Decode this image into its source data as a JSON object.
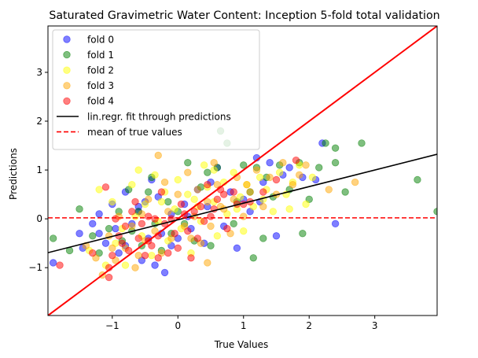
{
  "chart_data": {
    "type": "scatter",
    "title": "Saturated Gravimetric Water Content: Inception 5-fold total validation",
    "xlabel": "True Values",
    "ylabel": "Predictions",
    "xlim": [
      -1.98,
      3.95
    ],
    "ylim": [
      -1.98,
      3.95
    ],
    "xticks": [
      -1,
      0,
      1,
      2,
      3
    ],
    "yticks": [
      -1,
      0,
      1,
      2,
      3
    ],
    "grid": false,
    "legend_position": "top-left",
    "legend": [
      "fold 0",
      "fold 1",
      "fold 2",
      "fold 3",
      "fold 4",
      "lin.regr. fit through predictions",
      "mean of true values"
    ],
    "series": [
      {
        "name": "fold 0",
        "color": "#0000ff",
        "points": [
          [
            -1.9,
            -0.9
          ],
          [
            -1.5,
            -0.3
          ],
          [
            -1.45,
            -0.6
          ],
          [
            -1.3,
            -0.1
          ],
          [
            -1.2,
            0.1
          ],
          [
            -1.1,
            -0.5
          ],
          [
            -1.0,
            0.3
          ],
          [
            -0.95,
            -0.2
          ],
          [
            -0.9,
            -0.7
          ],
          [
            -0.8,
            0.55
          ],
          [
            -0.7,
            -0.1
          ],
          [
            -0.6,
            0.15
          ],
          [
            -0.55,
            -0.85
          ],
          [
            -0.5,
            0.35
          ],
          [
            -0.45,
            -0.4
          ],
          [
            -0.4,
            0.8
          ],
          [
            -0.35,
            -0.95
          ],
          [
            -0.3,
            0.45
          ],
          [
            -0.25,
            -0.3
          ],
          [
            -0.2,
            -1.1
          ],
          [
            -0.1,
            0.1
          ],
          [
            0.0,
            -0.4
          ],
          [
            0.1,
            0.3
          ],
          [
            0.2,
            -0.2
          ],
          [
            0.3,
            0.6
          ],
          [
            0.4,
            -0.5
          ],
          [
            0.5,
            0.75
          ],
          [
            0.6,
            1.05
          ],
          [
            0.7,
            -0.15
          ],
          [
            0.8,
            0.55
          ],
          [
            0.9,
            -0.6
          ],
          [
            1.0,
            0.4
          ],
          [
            1.1,
            0.15
          ],
          [
            1.2,
            1.25
          ],
          [
            1.3,
            0.75
          ],
          [
            1.4,
            1.15
          ],
          [
            1.5,
            -0.35
          ],
          [
            1.6,
            0.9
          ],
          [
            1.7,
            1.05
          ],
          [
            1.9,
            0.85
          ],
          [
            2.1,
            0.8
          ],
          [
            2.2,
            1.55
          ],
          [
            2.4,
            -0.1
          ],
          [
            -1.2,
            -0.3
          ],
          [
            -0.8,
            -0.55
          ],
          [
            -0.6,
            0.25
          ],
          [
            -0.1,
            -0.55
          ],
          [
            0.15,
            0.05
          ],
          [
            0.45,
            0.25
          ],
          [
            1.25,
            0.35
          ]
        ]
      },
      {
        "name": "fold 1",
        "color": "#008000",
        "points": [
          [
            -1.9,
            -0.4
          ],
          [
            -1.65,
            -0.65
          ],
          [
            -1.5,
            0.2
          ],
          [
            -1.3,
            -0.35
          ],
          [
            -1.2,
            -0.7
          ],
          [
            -1.05,
            -0.2
          ],
          [
            -0.9,
            0.15
          ],
          [
            -0.85,
            -0.45
          ],
          [
            -0.75,
            0.6
          ],
          [
            -0.7,
            -0.25
          ],
          [
            -0.6,
            0.15
          ],
          [
            -0.55,
            -0.55
          ],
          [
            -0.45,
            0.55
          ],
          [
            -0.4,
            0.85
          ],
          [
            -0.35,
            -0.1
          ],
          [
            -0.25,
            -0.65
          ],
          [
            -0.15,
            0.35
          ],
          [
            -0.1,
            -0.3
          ],
          [
            0.0,
            0.15
          ],
          [
            0.1,
            -0.1
          ],
          [
            0.15,
            1.15
          ],
          [
            0.25,
            -0.45
          ],
          [
            0.35,
            0.65
          ],
          [
            0.45,
            0.95
          ],
          [
            0.5,
            -0.55
          ],
          [
            0.6,
            1.05
          ],
          [
            0.65,
            1.8
          ],
          [
            0.75,
            1.55
          ],
          [
            0.85,
            -0.1
          ],
          [
            0.9,
            0.35
          ],
          [
            1.0,
            1.1
          ],
          [
            1.1,
            0.55
          ],
          [
            1.15,
            -0.8
          ],
          [
            1.2,
            1.05
          ],
          [
            1.3,
            -0.4
          ],
          [
            1.35,
            0.85
          ],
          [
            1.45,
            0.45
          ],
          [
            1.55,
            1.1
          ],
          [
            1.7,
            0.6
          ],
          [
            1.85,
            1.15
          ],
          [
            1.9,
            -0.3
          ],
          [
            2.0,
            0.4
          ],
          [
            2.15,
            1.05
          ],
          [
            2.25,
            1.55
          ],
          [
            2.4,
            1.15
          ],
          [
            2.4,
            1.45
          ],
          [
            2.55,
            0.55
          ],
          [
            2.8,
            1.55
          ],
          [
            3.65,
            0.8
          ],
          [
            3.95,
            0.15
          ]
        ]
      },
      {
        "name": "fold 2",
        "color": "#ffff00",
        "points": [
          [
            -1.2,
            0.6
          ],
          [
            -1.1,
            -0.95
          ],
          [
            -1.0,
            0.35
          ],
          [
            -0.95,
            -0.5
          ],
          [
            -0.85,
            -0.2
          ],
          [
            -0.7,
            0.7
          ],
          [
            -0.65,
            0.05
          ],
          [
            -0.55,
            -0.35
          ],
          [
            -0.5,
            0.3
          ],
          [
            -0.4,
            -0.75
          ],
          [
            -0.35,
            0.9
          ],
          [
            -0.3,
            -0.05
          ],
          [
            -0.2,
            0.55
          ],
          [
            -0.15,
            -0.45
          ],
          [
            -0.05,
            0.2
          ],
          [
            0.0,
            0.8
          ],
          [
            0.05,
            -0.2
          ],
          [
            0.15,
            0.5
          ],
          [
            0.2,
            -0.7
          ],
          [
            0.3,
            0.25
          ],
          [
            0.35,
            -0.05
          ],
          [
            0.45,
            0.65
          ],
          [
            0.55,
            0.35
          ],
          [
            0.6,
            -0.35
          ],
          [
            0.7,
            0.75
          ],
          [
            0.75,
            0.1
          ],
          [
            0.85,
            0.95
          ],
          [
            0.95,
            0.45
          ],
          [
            1.0,
            -0.25
          ],
          [
            1.05,
            0.7
          ],
          [
            1.15,
            0.25
          ],
          [
            1.25,
            0.85
          ],
          [
            1.35,
            0.6
          ],
          [
            1.45,
            0.15
          ],
          [
            1.55,
            0.95
          ],
          [
            1.65,
            0.5
          ],
          [
            1.75,
            0.75
          ],
          [
            1.85,
            1.1
          ],
          [
            1.95,
            0.3
          ],
          [
            2.05,
            0.85
          ],
          [
            -1.35,
            -0.65
          ],
          [
            -0.6,
            1.0
          ],
          [
            0.4,
            1.1
          ],
          [
            1.3,
            0.4
          ],
          [
            -0.25,
            0.35
          ],
          [
            0.9,
            0.2
          ],
          [
            0.55,
            1.0
          ],
          [
            -0.8,
            -0.95
          ],
          [
            0.25,
            0.4
          ],
          [
            1.7,
            0.2
          ]
        ]
      },
      {
        "name": "fold 3",
        "color": "#ffa500",
        "points": [
          [
            -1.4,
            -0.55
          ],
          [
            -1.25,
            -0.8
          ],
          [
            -1.15,
            -1.15
          ],
          [
            -1.05,
            -0.35
          ],
          [
            -0.95,
            -0.85
          ],
          [
            -0.9,
            0.05
          ],
          [
            -0.8,
            -0.6
          ],
          [
            -0.7,
            -0.15
          ],
          [
            -0.65,
            -1.0
          ],
          [
            -0.55,
            0.1
          ],
          [
            -0.5,
            -0.45
          ],
          [
            -0.45,
            0.4
          ],
          [
            -0.35,
            -0.25
          ],
          [
            -0.3,
            1.3
          ],
          [
            -0.25,
            -0.7
          ],
          [
            -0.15,
            0.15
          ],
          [
            -0.1,
            -0.4
          ],
          [
            0.0,
            0.5
          ],
          [
            0.1,
            -0.15
          ],
          [
            0.15,
            0.95
          ],
          [
            0.25,
            0.05
          ],
          [
            0.35,
            -0.5
          ],
          [
            0.45,
            0.35
          ],
          [
            0.45,
            -0.9
          ],
          [
            0.55,
            1.15
          ],
          [
            0.6,
            0.7
          ],
          [
            0.7,
            0.2
          ],
          [
            0.8,
            -0.3
          ],
          [
            0.9,
            0.85
          ],
          [
            1.0,
            0.05
          ],
          [
            1.1,
            0.55
          ],
          [
            1.2,
            1.0
          ],
          [
            1.3,
            0.25
          ],
          [
            1.4,
            0.85
          ],
          [
            1.5,
            0.5
          ],
          [
            1.6,
            1.15
          ],
          [
            1.75,
            0.7
          ],
          [
            1.85,
            0.9
          ],
          [
            2.3,
            0.6
          ],
          [
            2.7,
            0.75
          ],
          [
            -0.2,
            0.75
          ],
          [
            0.3,
            0.6
          ],
          [
            0.5,
            -0.15
          ],
          [
            -0.6,
            -0.75
          ],
          [
            0.2,
            -0.4
          ],
          [
            1.05,
            0.7
          ],
          [
            0.65,
            0.25
          ],
          [
            -1.0,
            -0.6
          ],
          [
            0.85,
            0.4
          ],
          [
            1.95,
            1.1
          ]
        ]
      },
      {
        "name": "fold 4",
        "color": "#ff0000",
        "points": [
          [
            -1.8,
            -0.95
          ],
          [
            -1.3,
            -0.7
          ],
          [
            -1.1,
            0.65
          ],
          [
            -1.05,
            -1.2
          ],
          [
            -1.0,
            -0.75
          ],
          [
            -0.95,
            0.0
          ],
          [
            -0.9,
            -0.35
          ],
          [
            -0.8,
            -0.15
          ],
          [
            -0.75,
            -0.65
          ],
          [
            -0.65,
            0.35
          ],
          [
            -0.6,
            -0.4
          ],
          [
            -0.55,
            -0.1
          ],
          [
            -0.5,
            -0.75
          ],
          [
            -0.45,
            0.05
          ],
          [
            -0.4,
            -0.55
          ],
          [
            -0.35,
            0.0
          ],
          [
            -0.3,
            -0.35
          ],
          [
            -0.25,
            0.55
          ],
          [
            -0.2,
            -0.1
          ],
          [
            -0.15,
            -0.7
          ],
          [
            -0.1,
            0.0
          ],
          [
            0.0,
            -0.6
          ],
          [
            0.05,
            0.3
          ],
          [
            0.1,
            0.1
          ],
          [
            0.15,
            -0.25
          ],
          [
            0.2,
            -0.8
          ],
          [
            0.3,
            -0.4
          ],
          [
            0.35,
            0.25
          ],
          [
            0.4,
            -0.05
          ],
          [
            0.45,
            0.7
          ],
          [
            0.5,
            0.05
          ],
          [
            0.6,
            0.4
          ],
          [
            0.65,
            0.6
          ],
          [
            0.75,
            -0.2
          ],
          [
            0.85,
            0.55
          ],
          [
            1.0,
            0.3
          ],
          [
            1.1,
            0.35
          ],
          [
            1.3,
            0.55
          ],
          [
            1.5,
            0.8
          ],
          [
            1.8,
            1.2
          ],
          [
            -1.05,
            -1.0
          ],
          [
            -0.7,
            0.15
          ],
          [
            -0.3,
            -0.8
          ],
          [
            0.25,
            0.15
          ],
          [
            -0.05,
            -0.3
          ],
          [
            0.55,
            0.2
          ],
          [
            -0.85,
            -0.5
          ],
          [
            0.7,
            0.5
          ],
          [
            -0.45,
            -0.45
          ],
          [
            0.9,
            0.3
          ]
        ]
      }
    ],
    "regression_line": {
      "name": "lin.regr. fit through predictions",
      "color": "#000000",
      "slope": 0.34,
      "intercept": -0.02
    },
    "identity_line": {
      "color": "#ff0000",
      "slope": 1,
      "intercept": 0
    },
    "mean_line": {
      "name": "mean of true values",
      "color": "#ff0000",
      "y": 0.02,
      "style": "dashed"
    }
  }
}
